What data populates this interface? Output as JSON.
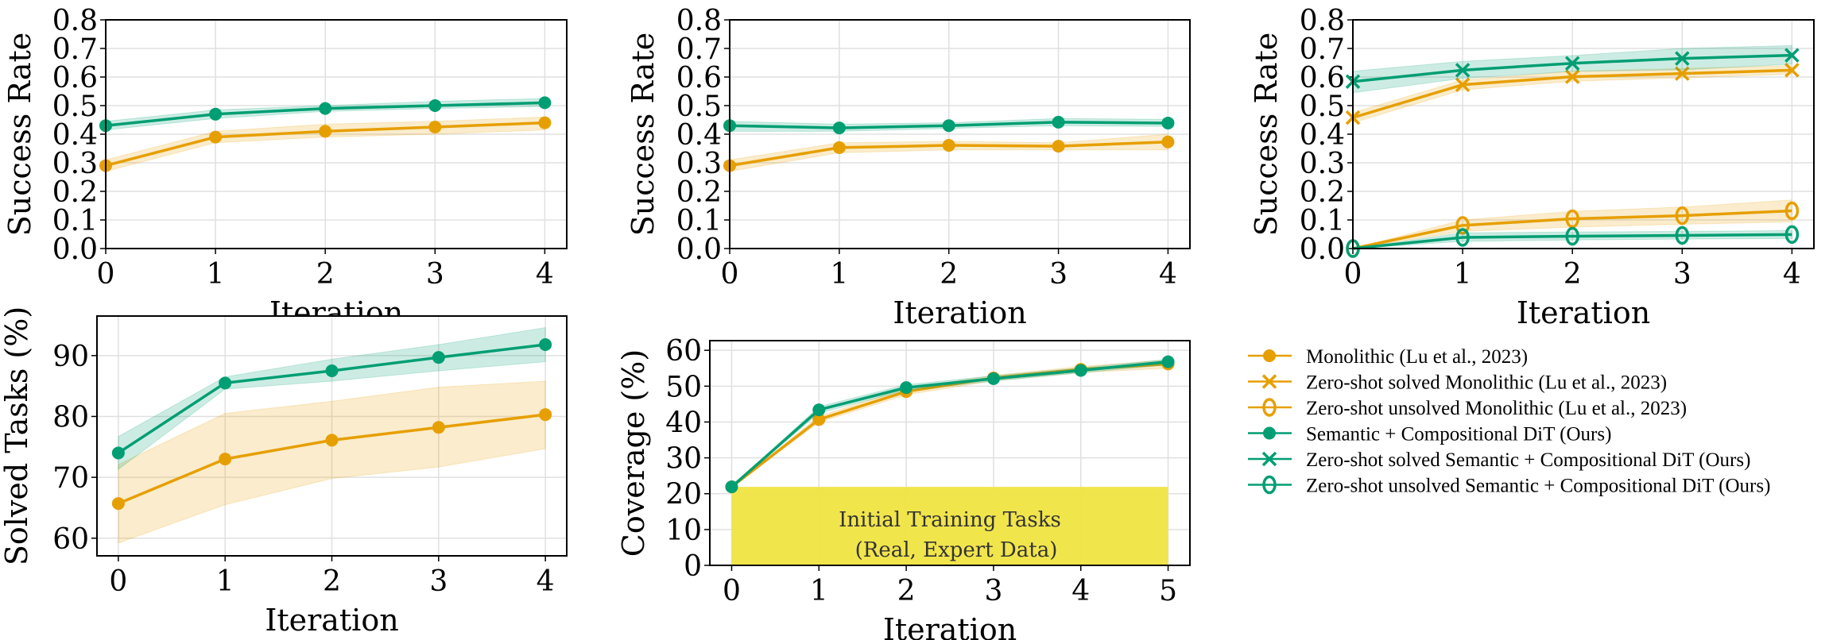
{
  "colors": {
    "monolithic": "#E69F00",
    "ours": "#009E73",
    "initial_region": "#F0E442",
    "grid": "#e0e0e0"
  },
  "legend": {
    "placement": "right of bottom row",
    "entries": [
      {
        "label": "Monolithic (Lu et al., 2023)",
        "color": "#E69F00",
        "marker": "circle"
      },
      {
        "label": "Zero-shot solved Monolithic (Lu et al., 2023)",
        "color": "#E69F00",
        "marker": "x"
      },
      {
        "label": "Zero-shot unsolved Monolithic (Lu et al., 2023)",
        "color": "#E69F00",
        "marker": "open-circle"
      },
      {
        "label": "Semantic + Compositional DiT (Ours)",
        "color": "#009E73",
        "marker": "circle"
      },
      {
        "label": "Zero-shot solved Semantic + Compositional DiT (Ours)",
        "color": "#009E73",
        "marker": "x"
      },
      {
        "label": "Zero-shot unsolved Semantic + Compositional DiT (Ours)",
        "color": "#009E73",
        "marker": "open-circle"
      }
    ]
  },
  "chart_data": [
    {
      "type": "line",
      "xlabel": "Iteration",
      "ylabel": "Success Rate",
      "x": [
        0,
        1,
        2,
        3,
        4
      ],
      "xlim": [
        0,
        4.2
      ],
      "ylim": [
        0,
        0.8
      ],
      "xticks": [
        "0",
        "1",
        "2",
        "3",
        "4"
      ],
      "yticks": [
        "0.0",
        "0.1",
        "0.2",
        "0.3",
        "0.4",
        "0.5",
        "0.6",
        "0.7",
        "0.8"
      ],
      "grid": true,
      "series": [
        {
          "legend_index": 0,
          "values": [
            0.29,
            0.39,
            0.41,
            0.425,
            0.44
          ],
          "lower": [
            0.27,
            0.37,
            0.39,
            0.4,
            0.415
          ],
          "upper": [
            0.31,
            0.41,
            0.435,
            0.445,
            0.46
          ]
        },
        {
          "legend_index": 3,
          "values": [
            0.43,
            0.47,
            0.49,
            0.5,
            0.51
          ],
          "lower": [
            0.415,
            0.455,
            0.48,
            0.49,
            0.497
          ],
          "upper": [
            0.445,
            0.485,
            0.5,
            0.515,
            0.525
          ]
        }
      ]
    },
    {
      "type": "line",
      "xlabel": "Iteration",
      "ylabel": "Success Rate",
      "x": [
        0,
        1,
        2,
        3,
        4
      ],
      "xlim": [
        0,
        4.2
      ],
      "ylim": [
        0,
        0.8
      ],
      "xticks": [
        "0",
        "1",
        "2",
        "3",
        "4"
      ],
      "yticks": [
        "0.0",
        "0.1",
        "0.2",
        "0.3",
        "0.4",
        "0.5",
        "0.6",
        "0.7",
        "0.8"
      ],
      "grid": true,
      "series": [
        {
          "legend_index": 0,
          "values": [
            0.29,
            0.353,
            0.361,
            0.358,
            0.373
          ],
          "lower": [
            0.27,
            0.335,
            0.345,
            0.345,
            0.345
          ],
          "upper": [
            0.31,
            0.37,
            0.375,
            0.37,
            0.4
          ]
        },
        {
          "legend_index": 3,
          "values": [
            0.43,
            0.422,
            0.43,
            0.442,
            0.439
          ],
          "lower": [
            0.41,
            0.41,
            0.42,
            0.43,
            0.427
          ],
          "upper": [
            0.445,
            0.435,
            0.44,
            0.455,
            0.452
          ]
        }
      ]
    },
    {
      "type": "line",
      "xlabel": "Iteration",
      "ylabel": "Success Rate",
      "x": [
        0,
        1,
        2,
        3,
        4
      ],
      "xlim": [
        0,
        4.2
      ],
      "ylim": [
        0,
        0.8
      ],
      "xticks": [
        "0",
        "1",
        "2",
        "3",
        "4"
      ],
      "yticks": [
        "0.0",
        "0.1",
        "0.2",
        "0.3",
        "0.4",
        "0.5",
        "0.6",
        "0.7",
        "0.8"
      ],
      "grid": true,
      "series": [
        {
          "legend_index": 1,
          "values": [
            0.458,
            0.573,
            0.601,
            0.612,
            0.624
          ],
          "lower": [
            0.44,
            0.555,
            0.585,
            0.597,
            0.61
          ],
          "upper": [
            0.475,
            0.59,
            0.62,
            0.63,
            0.64
          ]
        },
        {
          "legend_index": 2,
          "values": [
            0.0,
            0.081,
            0.104,
            0.115,
            0.132
          ],
          "lower": [
            0.0,
            0.06,
            0.075,
            0.085,
            0.093
          ],
          "upper": [
            0.0,
            0.1,
            0.13,
            0.145,
            0.17
          ]
        },
        {
          "legend_index": 4,
          "values": [
            0.584,
            0.624,
            0.648,
            0.665,
            0.676
          ],
          "lower": [
            0.545,
            0.595,
            0.62,
            0.625,
            0.645
          ],
          "upper": [
            0.62,
            0.655,
            0.675,
            0.7,
            0.71
          ]
        },
        {
          "legend_index": 5,
          "values": [
            0.0,
            0.039,
            0.043,
            0.046,
            0.049
          ],
          "lower": [
            0.0,
            0.025,
            0.03,
            0.033,
            0.035
          ],
          "upper": [
            0.0,
            0.055,
            0.058,
            0.06,
            0.063
          ]
        }
      ]
    },
    {
      "type": "line",
      "xlabel": "Iteration",
      "ylabel": "Solved Tasks (%)",
      "x": [
        0,
        1,
        2,
        3,
        4
      ],
      "xlim": [
        -0.2,
        4.2
      ],
      "ylim": [
        57.1,
        96.5
      ],
      "xticks": [
        "0",
        "1",
        "2",
        "3",
        "4"
      ],
      "yticks": [
        "60",
        "70",
        "80",
        "90"
      ],
      "grid": true,
      "series": [
        {
          "legend_index": 0,
          "values": [
            65.7,
            73.0,
            76.1,
            78.2,
            80.3
          ],
          "lower": [
            59.2,
            65.5,
            69.8,
            71.7,
            74.7
          ],
          "upper": [
            72.1,
            80.5,
            82.5,
            84.8,
            85.8
          ]
        },
        {
          "legend_index": 3,
          "values": [
            74.0,
            85.5,
            87.5,
            89.7,
            91.8
          ],
          "lower": [
            71.3,
            84.5,
            85.8,
            87.5,
            89.0
          ],
          "upper": [
            76.7,
            86.5,
            89.4,
            91.8,
            94.6
          ]
        }
      ]
    },
    {
      "type": "line",
      "xlabel": "Iteration",
      "ylabel": "Coverage (%)",
      "x": [
        0,
        1,
        2,
        3,
        4,
        5
      ],
      "xlim": [
        -0.25,
        5.25
      ],
      "ylim": [
        0,
        62.7
      ],
      "xticks": [
        "0",
        "1",
        "2",
        "3",
        "4",
        "5"
      ],
      "yticks": [
        "0",
        "10",
        "20",
        "30",
        "40",
        "50",
        "60"
      ],
      "grid": true,
      "region": {
        "x": [
          0,
          5
        ],
        "y": [
          0,
          21.9
        ],
        "label_line1": "Initial Training Tasks",
        "label_line2": "(Real, Expert Data)"
      },
      "series": [
        {
          "legend_index": 0,
          "values": [
            21.9,
            40.7,
            48.5,
            52.3,
            54.7,
            56.2
          ],
          "lower": [
            21.9,
            39.9,
            47.6,
            51.5,
            53.8,
            55.0
          ],
          "upper": [
            21.9,
            41.6,
            49.4,
            53.0,
            55.5,
            57.3
          ]
        },
        {
          "legend_index": 3,
          "values": [
            21.9,
            43.4,
            49.6,
            52.1,
            54.4,
            56.8
          ],
          "lower": [
            21.9,
            42.5,
            48.8,
            51.4,
            53.7,
            56.0
          ],
          "upper": [
            21.9,
            44.3,
            50.4,
            52.9,
            55.1,
            57.5
          ]
        }
      ]
    }
  ]
}
